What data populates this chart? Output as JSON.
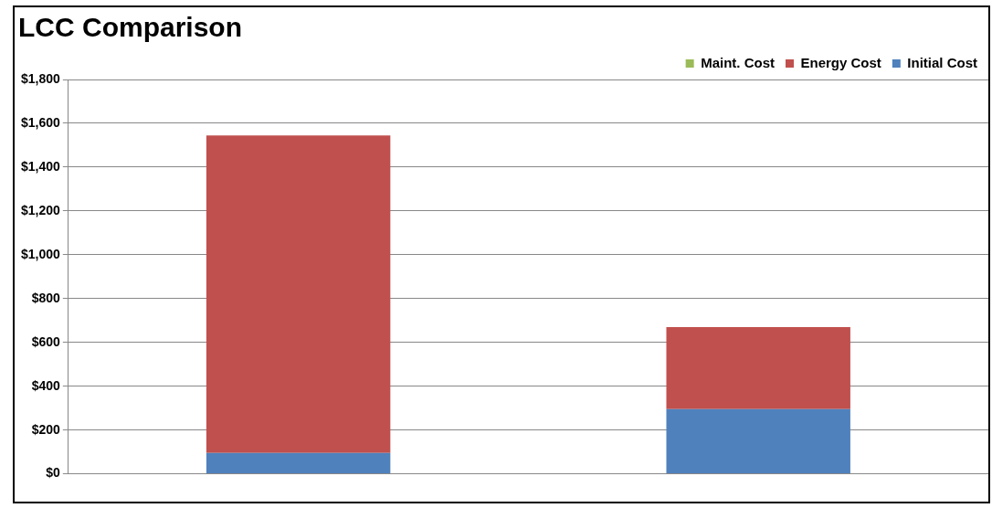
{
  "chart_data": {
    "type": "bar",
    "title": "LCC Comparison",
    "categories": [
      null,
      null
    ],
    "stacked": true,
    "series": [
      {
        "name": "Initial Cost",
        "color": "#4f81bd",
        "values": [
          95,
          295
        ]
      },
      {
        "name": "Energy Cost",
        "color": "#c0504d",
        "values": [
          1450,
          375
        ]
      },
      {
        "name": "Maint. Cost",
        "color": "#9bbb59",
        "values": [
          0,
          0
        ]
      }
    ],
    "ylim": [
      0,
      1800
    ],
    "yticks": [
      {
        "value": 0,
        "label": "$0"
      },
      {
        "value": 200,
        "label": "$200"
      },
      {
        "value": 400,
        "label": "$400"
      },
      {
        "value": 600,
        "label": "$600"
      },
      {
        "value": 800,
        "label": "$800"
      },
      {
        "value": 1000,
        "label": "$1,000"
      },
      {
        "value": 1200,
        "label": "$1,200"
      },
      {
        "value": 1400,
        "label": "$1,400"
      },
      {
        "value": 1600,
        "label": "$1,600"
      },
      {
        "value": 1800,
        "label": "$1,800"
      }
    ],
    "grid": "y",
    "legend": "top right"
  }
}
